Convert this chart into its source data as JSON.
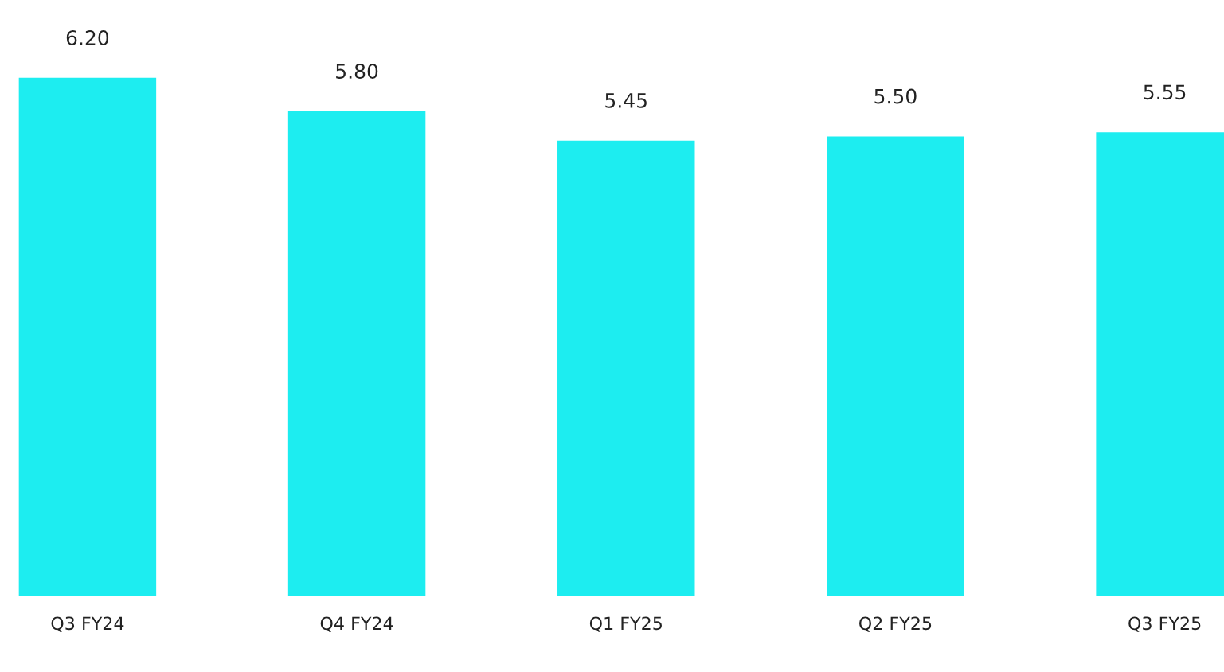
{
  "chart_data": {
    "type": "bar",
    "categories": [
      "Q3 FY24",
      "Q4 FY24",
      "Q1 FY25",
      "Q2 FY25",
      "Q3 FY25"
    ],
    "values": [
      6.2,
      5.8,
      5.45,
      5.5,
      5.55
    ],
    "color": "#1dedf0",
    "data_labels": true,
    "value_labels": [
      "6.20",
      "5.80",
      "5.45",
      "5.50",
      "5.55"
    ],
    "tick_labels": "x",
    "grid": false,
    "legend": false
  }
}
